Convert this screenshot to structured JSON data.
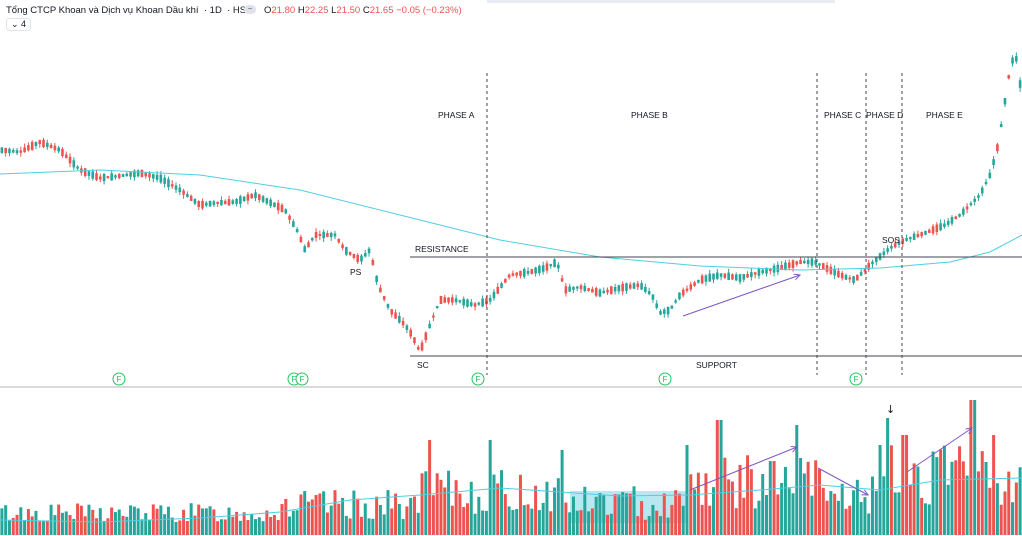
{
  "header": {
    "title": "Tổng CTCP Khoan và Dịch vụ Khoan Dầu khí",
    "interval": "1D",
    "exchange": "HSX",
    "o_label": "O",
    "o_value": "21.80",
    "h_label": "H",
    "h_value": "22.25",
    "l_label": "L",
    "l_value": "21.50",
    "c_label": "C",
    "c_value": "21.65",
    "change": "−0.05 (−0.23%)",
    "collapse_icon": "chevron-collapse-icon",
    "indicator_toggle": "⌄ 4"
  },
  "colors": {
    "up": "#26a69a",
    "down": "#ef5350",
    "ma": "#4dd0e1",
    "text": "#131722",
    "marker": "#22c55e",
    "arrow": "#7e57c2",
    "box": "#87d8e8"
  },
  "chart_data": {
    "type": "candlestick",
    "x_unit": "trading day index",
    "bars_count": 270,
    "phases": [
      {
        "label": "PHASE A",
        "start": 0.476,
        "end": 0.8
      },
      {
        "label": "PHASE B",
        "start": 0.476,
        "end": 0.8
      }
    ],
    "phase_labels": [
      "PHASE A",
      "PHASE B",
      "PHASE C",
      "PHASE D",
      "PHASE E"
    ],
    "annotations": [
      "RESISTANCE",
      "SUPPORT",
      "PS",
      "SC",
      "SOS"
    ],
    "event_marker": "F",
    "price_series": [
      37,
      38,
      39,
      40,
      40,
      39,
      38,
      36,
      35,
      35,
      34,
      33,
      34,
      35,
      35,
      34,
      33,
      31,
      30,
      30,
      31,
      30,
      29,
      29,
      28,
      29,
      30,
      31,
      28,
      26,
      24,
      21,
      20,
      23,
      24,
      24,
      23,
      21,
      19,
      20,
      21,
      17,
      13,
      10,
      8,
      6,
      5,
      3,
      2,
      0,
      4,
      7,
      8,
      10,
      11,
      9,
      8,
      9,
      12,
      14,
      15,
      17,
      18,
      20,
      21,
      19,
      18,
      16,
      16,
      17,
      16,
      16,
      15,
      16,
      17,
      14,
      12,
      10,
      9,
      11,
      13,
      14,
      15,
      16,
      17,
      18,
      18,
      19,
      18,
      19,
      20,
      21,
      22,
      24,
      23,
      22,
      20,
      18,
      19,
      20,
      21,
      22,
      23,
      25,
      27,
      29,
      31,
      33,
      35,
      36,
      34,
      33,
      35,
      38,
      42,
      45,
      50,
      55,
      58,
      62,
      66,
      70,
      72,
      75,
      78,
      83,
      88,
      92
    ],
    "volume_series": [
      30,
      25,
      20,
      28,
      22,
      18,
      25,
      30,
      22,
      20,
      18,
      24,
      22,
      28,
      20,
      18,
      22,
      25,
      30,
      28,
      24,
      20,
      35,
      28,
      30,
      32,
      36,
      38,
      30,
      45,
      40,
      55,
      50,
      48,
      60,
      55,
      52,
      58,
      62,
      45,
      48,
      55,
      66,
      70,
      60,
      55,
      50,
      58,
      52,
      60,
      55,
      58,
      62,
      70,
      85,
      75,
      80,
      90,
      70,
      78,
      88,
      92,
      96,
      80,
      110
    ],
    "ma_visible": true
  }
}
